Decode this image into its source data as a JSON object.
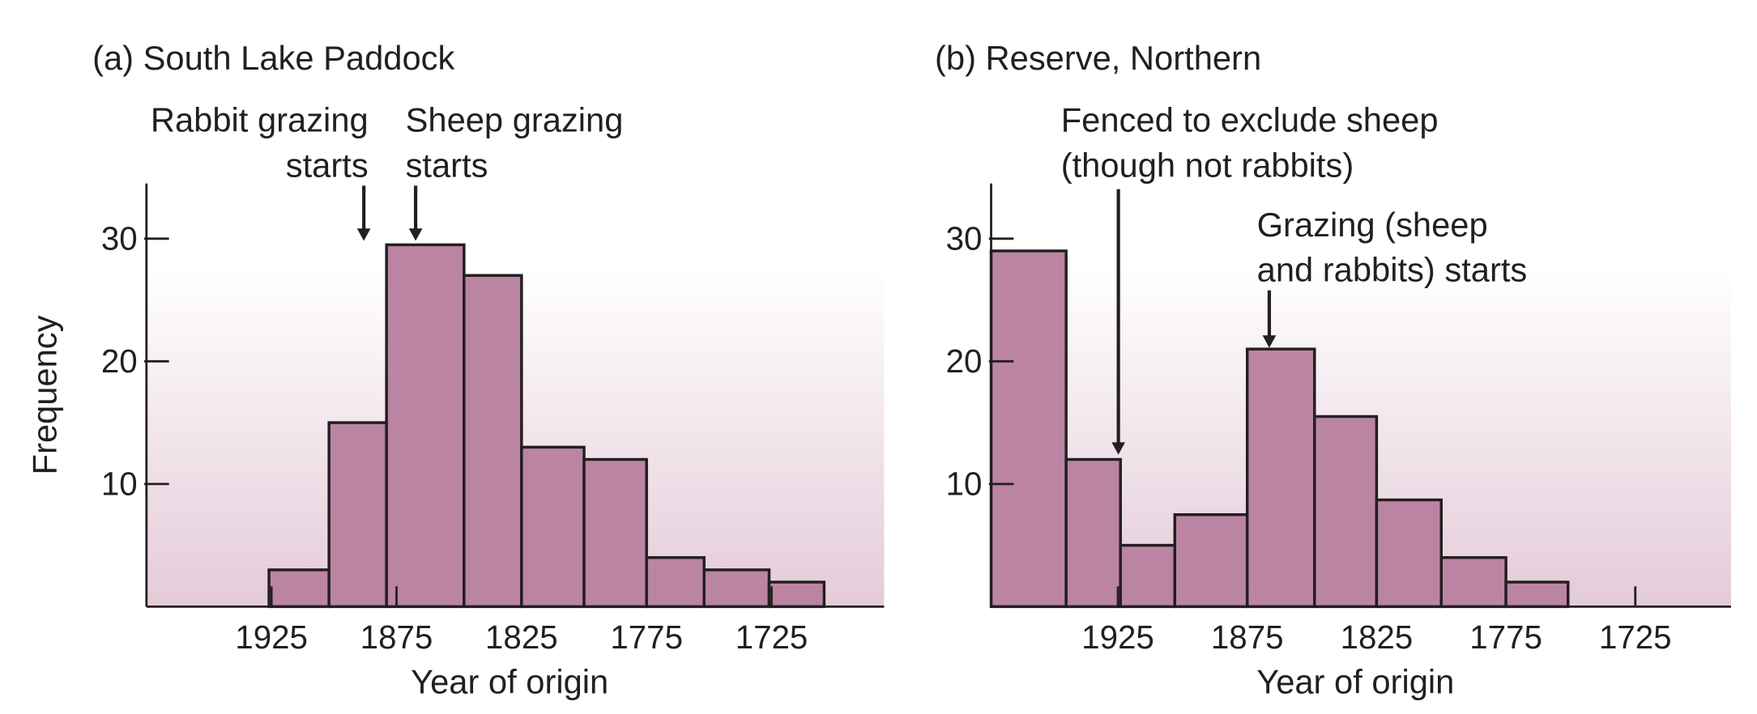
{
  "chart_data": [
    {
      "type": "histogram",
      "title": "(a)  South Lake Paddock",
      "xlabel": "Year of origin",
      "ylabel": "Frequency",
      "bins": [
        1926,
        1902,
        1879,
        1848,
        1825,
        1800,
        1775,
        1752,
        1726,
        1704
      ],
      "values": [
        3,
        15,
        29.5,
        27,
        13,
        12,
        4,
        3,
        2
      ],
      "color": "#bb84a3",
      "xlim": [
        1975,
        1680
      ],
      "xticks": [
        1925,
        1875,
        1825,
        1775,
        1725
      ],
      "ylim": [
        0,
        34.5
      ],
      "yticks": [
        10,
        20,
        30
      ],
      "annotations": [
        [
          "Rabbit grazing",
          "starts"
        ],
        [
          "Sheep grazing",
          "starts"
        ]
      ]
    },
    {
      "type": "histogram",
      "title": "(b)  Reserve, Northern",
      "xlabel": "Year of origin",
      "bins": [
        1974,
        1945,
        1924,
        1903,
        1875,
        1849,
        1825,
        1800,
        1775,
        1751
      ],
      "values": [
        29,
        12,
        5,
        7.5,
        21,
        15.5,
        8.7,
        4,
        2
      ],
      "color": "#bb84a3",
      "xlim": [
        1974,
        1688
      ],
      "xticks": [
        1925,
        1875,
        1825,
        1775,
        1725
      ],
      "ylim": [
        0,
        34.5
      ],
      "yticks": [
        10,
        20,
        30
      ],
      "annotations": [
        [
          "Fenced to exclude sheep",
          "(though not rabbits)"
        ],
        [
          "Grazing (sheep",
          "and rabbits) starts"
        ]
      ]
    }
  ]
}
